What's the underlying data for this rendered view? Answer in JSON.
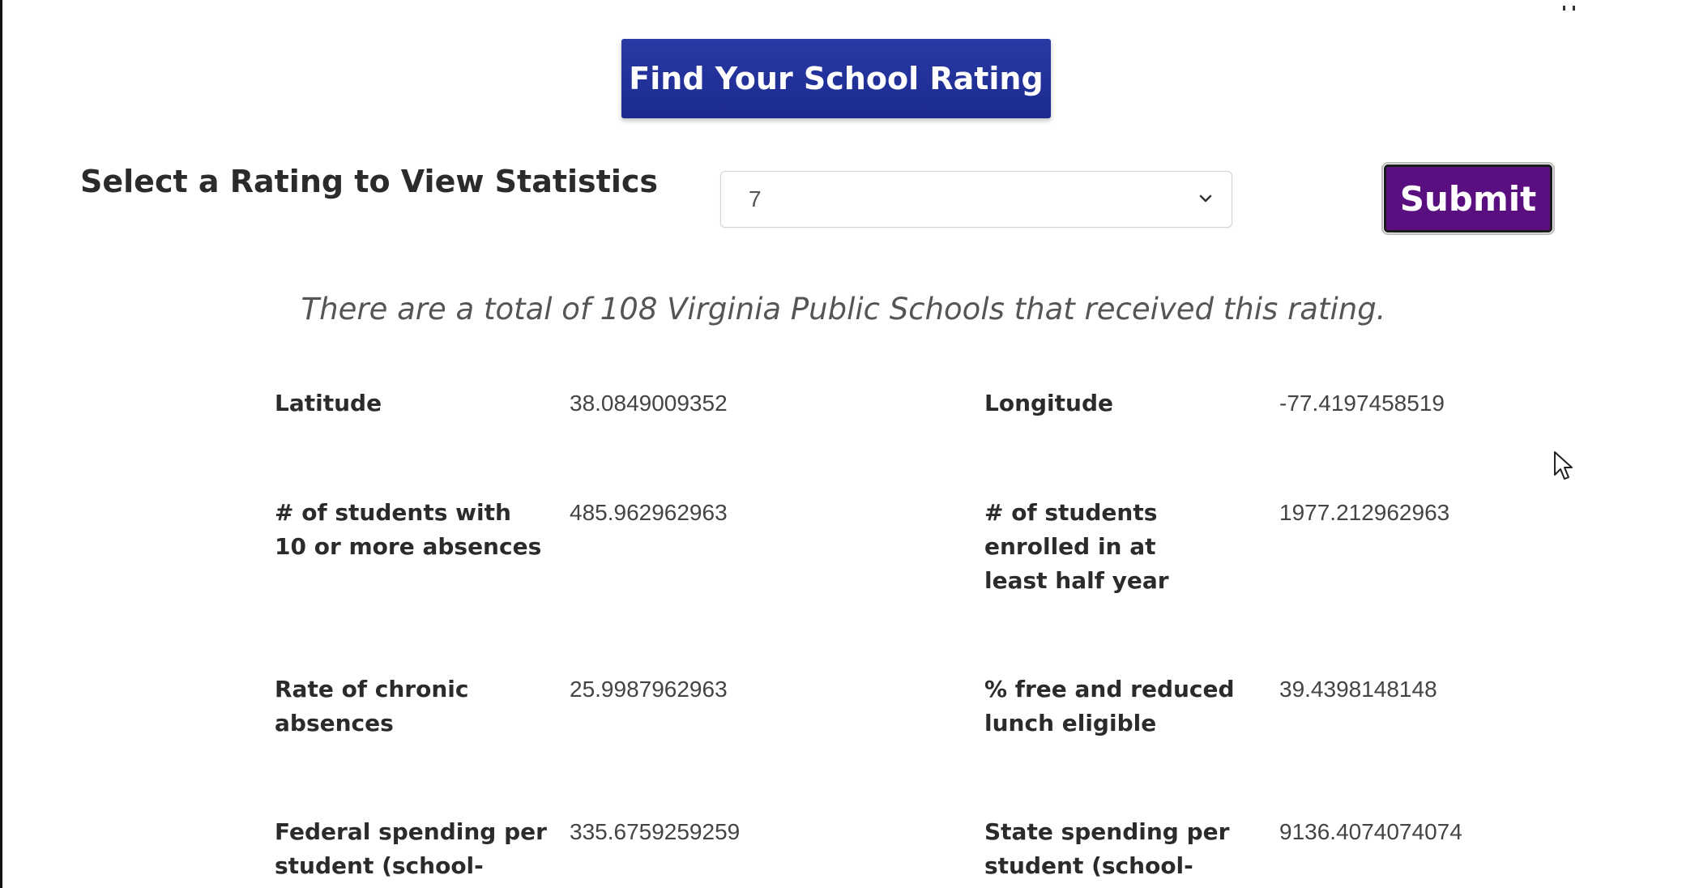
{
  "header": {
    "find_button_label": "Find Your School Rating"
  },
  "rating_form": {
    "label": "Select a Rating to View Statistics",
    "selected_value": "7",
    "submit_label": "Submit"
  },
  "summary_text": "There are a total of 108 Virginia Public Schools that received this rating.",
  "stats": {
    "latitude": {
      "label": "Latitude",
      "value": "38.0849009352"
    },
    "longitude": {
      "label": "Longitude",
      "value": "-77.4197458519"
    },
    "students_10_absences": {
      "label": "# of students with 10 or more absences",
      "value": "485.962962963"
    },
    "students_enrolled_half_year": {
      "label": "# of students enrolled in at least half year",
      "value": "1977.212962963"
    },
    "chronic_absence_rate": {
      "label": "Rate of chronic absences",
      "value": "25.9987962963"
    },
    "free_reduced_lunch": {
      "label": "% free and reduced lunch eligible",
      "value": "39.4398148148"
    },
    "federal_spending": {
      "label": "Federal spending per student (school-level)",
      "value": "335.6759259259"
    },
    "state_spending": {
      "label": "State spending per student (school-level)",
      "value": "9136.4074074074"
    }
  },
  "colors": {
    "find_button": "#1b2a8e",
    "submit_button": "#5a0f80"
  }
}
